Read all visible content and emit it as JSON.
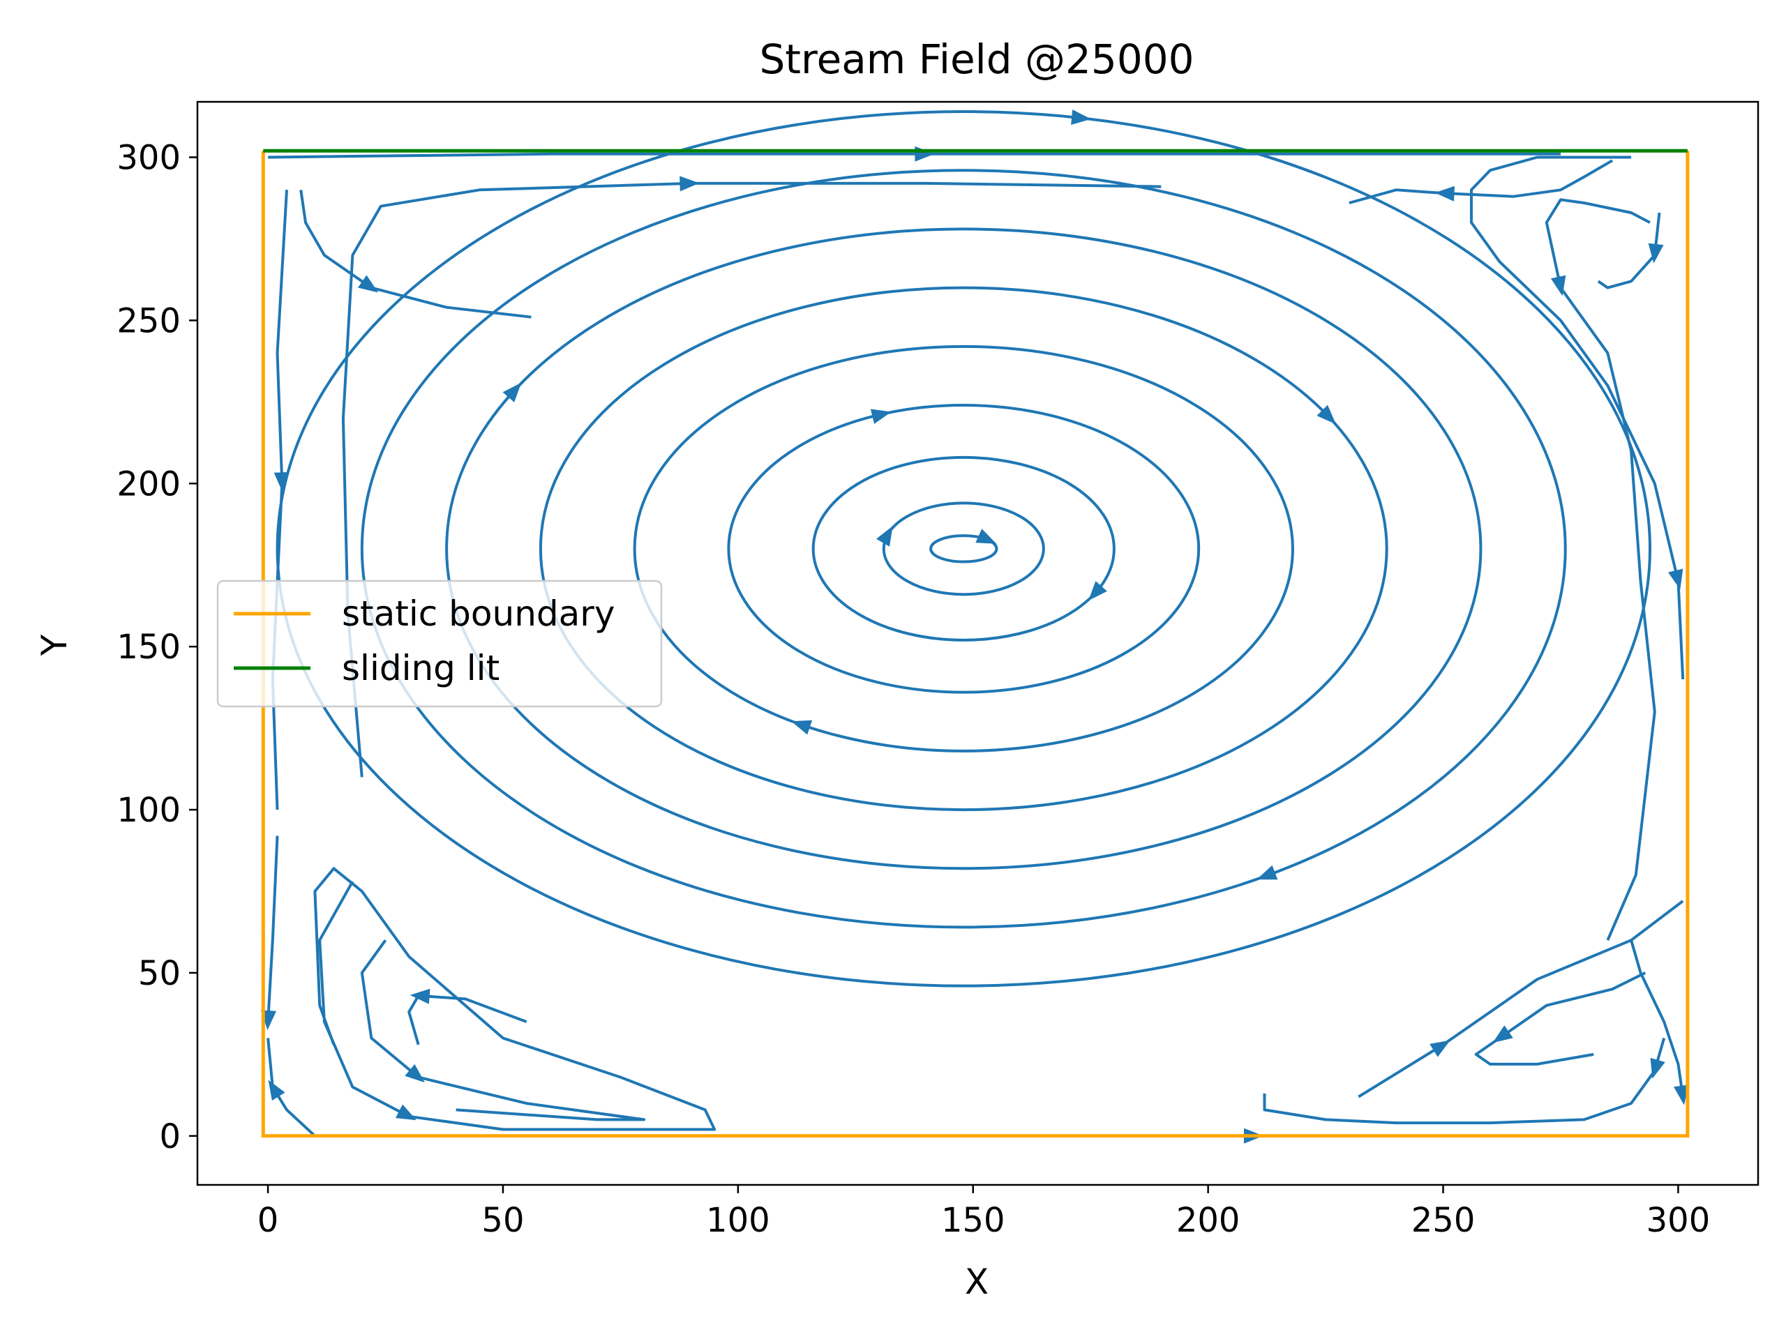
{
  "chart_data": {
    "type": "streamplot",
    "title": "Stream Field @25000",
    "xlabel": "X",
    "ylabel": "Y",
    "xlim": [
      -15,
      317
    ],
    "ylim": [
      -15,
      317
    ],
    "xticks": [
      0,
      50,
      100,
      150,
      200,
      250,
      300
    ],
    "yticks": [
      0,
      50,
      100,
      150,
      200,
      250,
      300
    ],
    "xtick_labels": [
      "0",
      "50",
      "100",
      "150",
      "200",
      "250",
      "300"
    ],
    "ytick_labels": [
      "0",
      "50",
      "100",
      "150",
      "200",
      "250",
      "300"
    ],
    "grid": false,
    "legend_position": "center-left",
    "stream_color": "#1f77b4",
    "vortex_center": [
      148,
      180
    ],
    "boundaries": [
      {
        "name": "static boundary",
        "color": "#ffa500",
        "x": [
          302,
          302,
          -1,
          -1
        ],
        "y": [
          302,
          0,
          0,
          302
        ]
      },
      {
        "name": "sliding lit",
        "color": "#008000",
        "x": [
          -1,
          302
        ],
        "y": [
          302,
          302
        ]
      }
    ],
    "main_vortex_ellipses": [
      {
        "rx": 7,
        "ry": 4,
        "arrow": 320
      },
      {
        "rx": 17,
        "ry": 14,
        "arrow": 200
      },
      {
        "rx": 32,
        "ry": 28,
        "arrow": 30
      },
      {
        "rx": 50,
        "ry": 44,
        "arrow": 250
      },
      {
        "rx": 70,
        "ry": 62,
        "arrow": 120
      },
      {
        "rx": 90,
        "ry": 80,
        "arrow": 330
      },
      {
        "rx": 110,
        "ry": 98,
        "arrow": 210
      },
      {
        "rx": 128,
        "ry": 116,
        "arrow": 60
      },
      {
        "rx": 146,
        "ry": 134,
        "arrow": 280
      }
    ],
    "streamlines": [
      {
        "points": [
          [
            7,
            290
          ],
          [
            8,
            280
          ],
          [
            12,
            270
          ],
          [
            22,
            260
          ],
          [
            38,
            254
          ],
          [
            56,
            251
          ]
        ],
        "arrow": 3
      },
      {
        "points": [
          [
            20,
            110
          ],
          [
            17,
            160
          ],
          [
            16,
            220
          ],
          [
            18,
            270
          ],
          [
            24,
            285
          ],
          [
            45,
            290
          ],
          [
            90,
            292
          ],
          [
            140,
            292
          ],
          [
            190,
            291
          ]
        ],
        "arrow": 6
      },
      {
        "points": [
          [
            0,
            300
          ],
          [
            60,
            301
          ],
          [
            140,
            301
          ],
          [
            220,
            301
          ],
          [
            275,
            301
          ]
        ],
        "arrow": 2
      },
      {
        "points": [
          [
            4,
            290
          ],
          [
            2,
            240
          ],
          [
            3,
            200
          ],
          [
            1,
            140
          ],
          [
            2,
            100
          ]
        ],
        "arrow": 2
      },
      {
        "points": [
          [
            2,
            92
          ],
          [
            1,
            60
          ],
          [
            0,
            35
          ]
        ],
        "arrow": 2
      },
      {
        "points": [
          [
            10,
            0
          ],
          [
            4,
            8
          ],
          [
            1,
            15
          ],
          [
            0,
            30
          ]
        ],
        "arrow": 2
      },
      {
        "points": [
          [
            18,
            78
          ],
          [
            11,
            60
          ],
          [
            12,
            35
          ],
          [
            18,
            15
          ],
          [
            30,
            6
          ],
          [
            50,
            2
          ],
          [
            95,
            2
          ],
          [
            93,
            8
          ],
          [
            75,
            18
          ],
          [
            50,
            30
          ],
          [
            30,
            55
          ],
          [
            20,
            75
          ],
          [
            14,
            82
          ],
          [
            10,
            75
          ],
          [
            11,
            40
          ],
          [
            14,
            28
          ]
        ],
        "arrow": 4
      },
      {
        "points": [
          [
            55,
            35
          ],
          [
            42,
            42
          ],
          [
            32,
            43
          ],
          [
            30,
            38
          ],
          [
            32,
            28
          ]
        ],
        "arrow": 2
      },
      {
        "points": [
          [
            25,
            60
          ],
          [
            20,
            50
          ],
          [
            22,
            30
          ],
          [
            32,
            18
          ],
          [
            55,
            10
          ],
          [
            80,
            5
          ],
          [
            70,
            5
          ],
          [
            40,
            8
          ]
        ],
        "arrow": 3
      },
      {
        "points": [
          [
            290,
            300
          ],
          [
            270,
            300
          ],
          [
            260,
            296
          ],
          [
            256,
            290
          ],
          [
            256,
            280
          ],
          [
            262,
            268
          ],
          [
            275,
            250
          ],
          [
            285,
            230
          ],
          [
            295,
            200
          ],
          [
            300,
            170
          ],
          [
            301,
            140
          ]
        ],
        "arrow": 9
      },
      {
        "points": [
          [
            286,
            299
          ],
          [
            280,
            294
          ],
          [
            275,
            290
          ],
          [
            265,
            288
          ],
          [
            250,
            289
          ],
          [
            240,
            290
          ],
          [
            230,
            286
          ]
        ],
        "arrow": 4
      },
      {
        "points": [
          [
            296,
            283
          ],
          [
            295,
            270
          ],
          [
            290,
            262
          ],
          [
            285,
            260
          ],
          [
            283,
            262
          ]
        ],
        "arrow": 1
      },
      {
        "points": [
          [
            294,
            280
          ],
          [
            290,
            283
          ],
          [
            280,
            286
          ],
          [
            275,
            287
          ],
          [
            272,
            280
          ],
          [
            275,
            260
          ],
          [
            285,
            240
          ],
          [
            290,
            210
          ],
          [
            292,
            170
          ],
          [
            295,
            130
          ],
          [
            291,
            80
          ],
          [
            285,
            60
          ]
        ],
        "arrow": 5
      },
      {
        "points": [
          [
            297,
            30
          ],
          [
            295,
            20
          ],
          [
            290,
            10
          ],
          [
            280,
            5
          ],
          [
            260,
            4
          ],
          [
            240,
            4
          ],
          [
            225,
            5
          ],
          [
            212,
            8
          ],
          [
            212,
            13
          ]
        ],
        "arrow": 1
      },
      {
        "points": [
          [
            293,
            50
          ],
          [
            286,
            45
          ],
          [
            272,
            40
          ],
          [
            262,
            30
          ],
          [
            257,
            25
          ],
          [
            260,
            22
          ],
          [
            270,
            22
          ],
          [
            282,
            25
          ]
        ],
        "arrow": 3
      },
      {
        "points": [
          [
            290,
            60
          ],
          [
            292,
            50
          ],
          [
            297,
            35
          ],
          [
            300,
            22
          ],
          [
            301,
            12
          ]
        ],
        "arrow": 4
      },
      {
        "points": [
          [
            233,
            0
          ],
          [
            210,
            0
          ],
          [
            190,
            0
          ],
          [
            170,
            0
          ],
          [
            210,
            0
          ],
          [
            245,
            0
          ]
        ],
        "arrow": 4
      },
      {
        "points": [
          [
            232,
            12
          ],
          [
            250,
            28
          ],
          [
            270,
            48
          ],
          [
            290,
            60
          ],
          [
            301,
            72
          ]
        ],
        "arrow": 1
      }
    ]
  }
}
